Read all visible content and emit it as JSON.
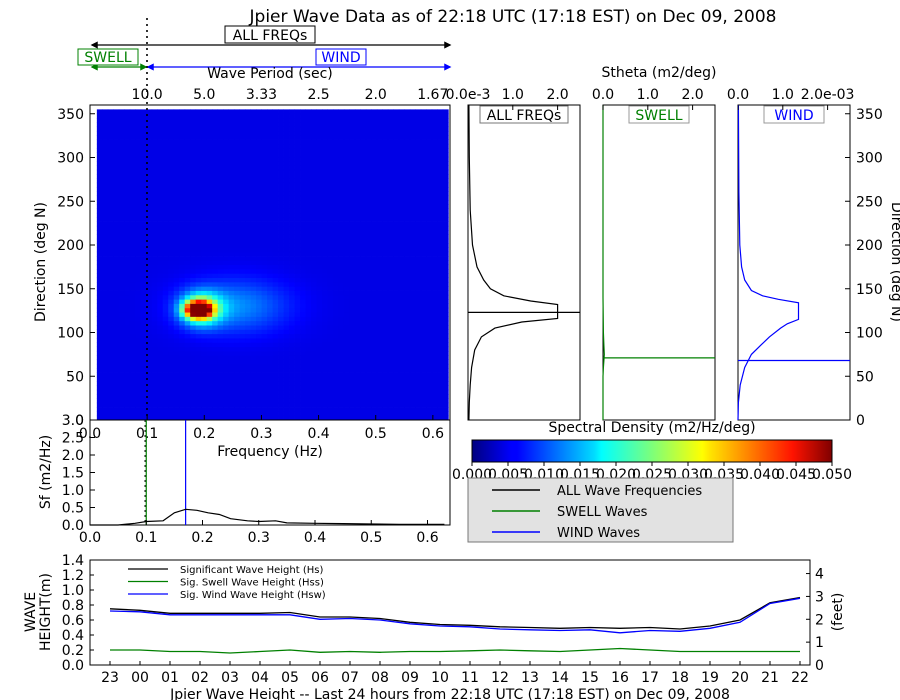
{
  "title": "Jpier Wave Data as of 22:18 UTC (17:18 EST) on Dec 09, 2008",
  "header": {
    "all_freqs_label": "ALL FREQs",
    "swell_label": "SWELL",
    "wind_label": "WIND",
    "period_axis_label": "Wave Period (sec)",
    "period_ticks": [
      "10.0",
      "5.0",
      "3.33",
      "2.5",
      "2.0",
      "1.67"
    ],
    "stheta_label": "Stheta (m2/deg)"
  },
  "colorbar": {
    "label": "Spectral Density (m2/Hz/deg)",
    "ticks": [
      "0.000",
      "0.005",
      "0.010",
      "0.015",
      "0.020",
      "0.025",
      "0.030",
      "0.035",
      "0.040",
      "0.045",
      "0.050"
    ]
  },
  "legend": {
    "items": [
      {
        "label": "ALL Wave Frequencies",
        "color": "#000000"
      },
      {
        "label": "SWELL Waves",
        "color": "#008000"
      },
      {
        "label": "WIND Waves",
        "color": "#0000ff"
      }
    ]
  },
  "chart_data": [
    {
      "type": "heatmap",
      "title": "Jpier Wave Data as of 22:18 UTC (17:18 EST) on Dec 09, 2008",
      "xlabel": "Frequency (Hz)",
      "ylabel": "Direction (deg N)",
      "xlim": [
        0.0,
        0.63
      ],
      "ylim": [
        0,
        360
      ],
      "xticks": [
        "0.0",
        "0.1",
        "0.2",
        "0.3",
        "0.4",
        "0.5",
        "0.6"
      ],
      "yticks": [
        "0",
        "50",
        "100",
        "150",
        "200",
        "250",
        "300",
        "350"
      ],
      "peak": {
        "x": 0.175,
        "y": 125,
        "value": 0.05
      },
      "swell_wind_separation_freq": 0.1,
      "colorscale": "jet",
      "zlim": [
        0.0,
        0.05
      ]
    },
    {
      "type": "line",
      "title": "ALL FREQs",
      "xlabel": "",
      "xticks": [
        "0.0e-3",
        "1.0",
        "2.0"
      ],
      "ylim": [
        0,
        360
      ],
      "peak_direction": 123,
      "series": [
        {
          "color": "#000000",
          "x": [
            0.02,
            0.03,
            0.05,
            0.08,
            0.15,
            0.3,
            0.6,
            1.2,
            2.0,
            2.0,
            1.4,
            0.8,
            0.5,
            0.35,
            0.2,
            0.1,
            0.05,
            0.03,
            0.02
          ],
          "y": [
            0,
            20,
            40,
            60,
            80,
            95,
            105,
            112,
            116,
            132,
            136,
            142,
            150,
            160,
            175,
            200,
            240,
            300,
            360
          ]
        }
      ]
    },
    {
      "type": "line",
      "title": "SWELL",
      "xticks": [
        "0.0",
        "1.0",
        "2.0"
      ],
      "ylim": [
        0,
        360
      ],
      "peak_direction": 71,
      "series": [
        {
          "color": "#008000",
          "x": [
            0,
            0,
            0.01,
            0.02,
            0.03,
            0.02,
            0.01,
            0,
            0
          ],
          "y": [
            0,
            50,
            60,
            68,
            75,
            85,
            100,
            140,
            360
          ]
        }
      ]
    },
    {
      "type": "line",
      "title": "WIND",
      "xticks": [
        "0.0",
        "1.0",
        "2.0e-03"
      ],
      "ylim": [
        0,
        360
      ],
      "peak_direction": 68,
      "series": [
        {
          "color": "#0000ff",
          "x": [
            0.0,
            0.01,
            0.05,
            0.15,
            0.3,
            0.5,
            0.7,
            0.95,
            1.1,
            1.35,
            1.35,
            0.9,
            0.55,
            0.3,
            0.15,
            0.08,
            0.04,
            0.02,
            0.01
          ],
          "y": [
            0,
            20,
            40,
            60,
            75,
            85,
            95,
            105,
            110,
            115,
            134,
            138,
            142,
            148,
            160,
            175,
            200,
            260,
            360
          ]
        }
      ]
    },
    {
      "type": "line",
      "title": "",
      "xlabel": "Frequency (Hz)",
      "ylabel": "Sf (m2/Hz)",
      "xlim": [
        0.0,
        0.64
      ],
      "ylim": [
        0.0,
        3.0
      ],
      "xticks": [
        "0.0",
        "0.1",
        "0.2",
        "0.3",
        "0.4",
        "0.5",
        "0.6"
      ],
      "yticks": [
        "0.0",
        "0.5",
        "1.0",
        "1.5",
        "2.0",
        "2.5",
        "3.0"
      ],
      "swell_marker": 0.1,
      "wind_marker": 0.17,
      "series": [
        {
          "name": "ALL Wave Frequencies",
          "color": "#000000",
          "x": [
            0.0,
            0.05,
            0.08,
            0.1,
            0.13,
            0.15,
            0.17,
            0.19,
            0.21,
            0.23,
            0.25,
            0.28,
            0.3,
            0.33,
            0.35,
            0.4,
            0.45,
            0.5,
            0.55,
            0.6,
            0.63
          ],
          "y": [
            0.0,
            0.0,
            0.05,
            0.1,
            0.12,
            0.35,
            0.45,
            0.42,
            0.35,
            0.3,
            0.18,
            0.12,
            0.1,
            0.12,
            0.06,
            0.05,
            0.04,
            0.03,
            0.02,
            0.02,
            0.02
          ]
        }
      ]
    },
    {
      "type": "line",
      "title": "Jpier Wave Height -- Last 24 hours from 22:18 UTC (17:18 EST) on Dec 09, 2008",
      "ylabel": "WAVE HEIGHT(m)",
      "ylabel_right": "(feet)",
      "ylim": [
        0,
        1.4
      ],
      "yticks": [
        "0.0",
        "0.2",
        "0.4",
        "0.6",
        "0.8",
        "1.0",
        "1.2",
        "1.4"
      ],
      "yticks_right": [
        "0",
        "1",
        "2",
        "3",
        "4"
      ],
      "x": [
        "23",
        "00",
        "01",
        "02",
        "03",
        "04",
        "05",
        "06",
        "07",
        "08",
        "09",
        "10",
        "11",
        "12",
        "13",
        "14",
        "15",
        "16",
        "17",
        "18",
        "19",
        "20",
        "21",
        "22"
      ],
      "series": [
        {
          "name": "Significant Wave Height (Hs)",
          "color": "#000000",
          "values": [
            0.75,
            0.73,
            0.69,
            0.69,
            0.69,
            0.69,
            0.7,
            0.64,
            0.64,
            0.62,
            0.57,
            0.54,
            0.53,
            0.51,
            0.5,
            0.49,
            0.5,
            0.49,
            0.5,
            0.48,
            0.52,
            0.6,
            0.83,
            0.9
          ]
        },
        {
          "name": "Sig. Swell Wave Height (Hss)",
          "color": "#008000",
          "values": [
            0.2,
            0.2,
            0.18,
            0.18,
            0.16,
            0.18,
            0.2,
            0.17,
            0.18,
            0.17,
            0.18,
            0.18,
            0.19,
            0.2,
            0.19,
            0.18,
            0.2,
            0.22,
            0.2,
            0.18,
            0.18,
            0.18,
            0.18,
            0.18
          ]
        },
        {
          "name": "Sig. Wind Wave Height (Hsw)",
          "color": "#0000ff",
          "values": [
            0.72,
            0.71,
            0.67,
            0.67,
            0.67,
            0.67,
            0.67,
            0.61,
            0.62,
            0.6,
            0.55,
            0.52,
            0.51,
            0.48,
            0.47,
            0.46,
            0.47,
            0.43,
            0.46,
            0.45,
            0.49,
            0.57,
            0.82,
            0.89
          ]
        }
      ]
    }
  ]
}
